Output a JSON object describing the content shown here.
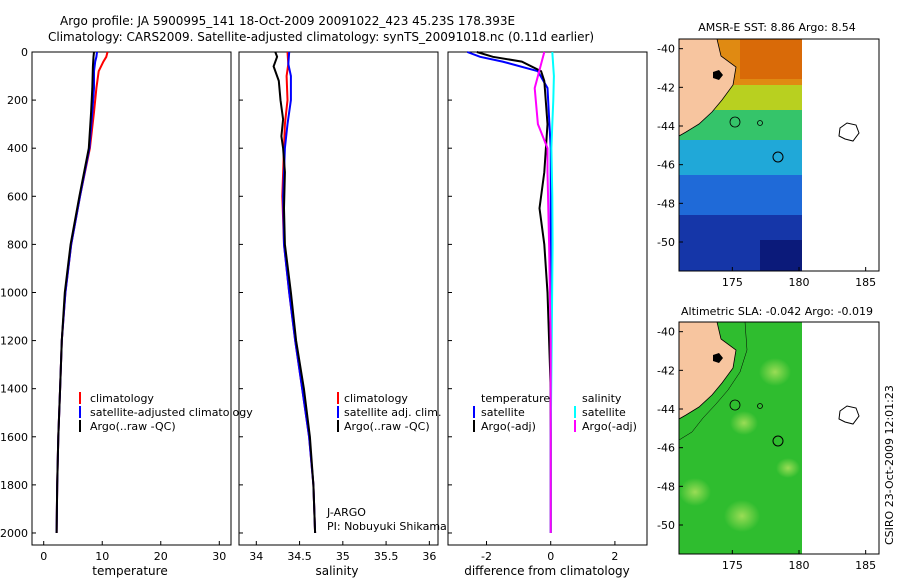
{
  "header": {
    "line1": "Argo profile: JA 5900995_141 18-Oct-2009 20091022_423 45.23S 178.393E",
    "line2": "Climatology: CARS2009. Satellite-adjusted climatology: synTS_20091018.nc (0.11d earlier)"
  },
  "colors": {
    "climatology": "#ff0000",
    "satellite": "#0000ff",
    "argo": "#000000",
    "sal_satellite": "#00ffff",
    "sal_argo": "#ff00ff",
    "land": "#f7c59f",
    "sla": "#22bb22"
  },
  "credit": "CSIRO 23-Oct-2009 12:01:23",
  "chart_data": [
    {
      "id": "temperature",
      "type": "line",
      "xlabel": "temperature",
      "ylabel": "",
      "xlim": [
        -2,
        32
      ],
      "ylim": [
        2050,
        0
      ],
      "xticks": [
        0,
        10,
        20,
        30
      ],
      "yticks": [
        0,
        200,
        400,
        600,
        800,
        1000,
        1200,
        1400,
        1600,
        1800,
        2000
      ],
      "series": [
        {
          "name": "climatology",
          "color": "#ff0000",
          "x": [
            10.9,
            10.7,
            10.2,
            9.4,
            9.0,
            8.6,
            7.9,
            6.2,
            4.7,
            3.7,
            3.1,
            2.8,
            2.5,
            2.3,
            2.2
          ],
          "y": [
            0,
            20,
            40,
            80,
            150,
            250,
            400,
            600,
            800,
            1000,
            1200,
            1400,
            1600,
            1800,
            2000
          ]
        },
        {
          "name": "satellite-adjusted climatology",
          "color": "#0000ff",
          "x": [
            9.1,
            9.0,
            8.8,
            8.6,
            8.6,
            8.3,
            7.8,
            6.2,
            4.7,
            3.7,
            3.1,
            2.8,
            2.5,
            2.3,
            2.2
          ],
          "y": [
            0,
            20,
            40,
            80,
            150,
            250,
            400,
            600,
            800,
            1000,
            1200,
            1400,
            1600,
            1800,
            2000
          ]
        },
        {
          "name": "Argo(..raw -QC)",
          "color": "#000000",
          "x": [
            8.6,
            8.5,
            8.4,
            8.3,
            8.1,
            7.7,
            6.1,
            4.6,
            3.6,
            3.1,
            2.8,
            2.5,
            2.3,
            2.2
          ],
          "y": [
            0,
            20,
            60,
            150,
            250,
            400,
            600,
            800,
            1000,
            1200,
            1400,
            1600,
            1800,
            2000
          ]
        }
      ],
      "legend": {
        "placement": "lower-right",
        "entries": [
          "climatology",
          "satellite-adjusted climatology",
          "Argo(..raw -QC)"
        ]
      }
    },
    {
      "id": "salinity",
      "type": "line",
      "xlabel": "salinity",
      "ylabel": "",
      "xlim": [
        33.8,
        36.1
      ],
      "ylim": [
        2050,
        0
      ],
      "xticks": [
        34,
        34.5,
        35,
        35.5,
        36
      ],
      "tick_labels": [
        "34",
        "34.5",
        "35",
        "35.5",
        "36"
      ],
      "series": [
        {
          "name": "climatology",
          "color": "#ff0000",
          "x": [
            34.36,
            34.37,
            34.35,
            34.36,
            34.33,
            34.32,
            34.3,
            34.32,
            34.38,
            34.45,
            34.53,
            34.61,
            34.66,
            34.68
          ],
          "y": [
            0,
            50,
            100,
            200,
            300,
            400,
            600,
            800,
            1000,
            1200,
            1400,
            1600,
            1800,
            2000
          ]
        },
        {
          "name": "satellite adj. clim.",
          "color": "#0000ff",
          "x": [
            34.38,
            34.37,
            34.4,
            34.4,
            34.36,
            34.33,
            34.31,
            34.32,
            34.38,
            34.45,
            34.53,
            34.61,
            34.66,
            34.68
          ],
          "y": [
            0,
            50,
            100,
            200,
            300,
            400,
            600,
            800,
            1000,
            1200,
            1400,
            1600,
            1800,
            2000
          ]
        },
        {
          "name": "Argo(..raw -QC)",
          "color": "#000000",
          "x": [
            34.22,
            34.24,
            34.2,
            34.26,
            34.28,
            34.31,
            34.29,
            34.31,
            34.33,
            34.32,
            34.33,
            34.4,
            34.46,
            34.55,
            34.62,
            34.66,
            34.68
          ],
          "y": [
            0,
            20,
            60,
            120,
            200,
            280,
            350,
            400,
            500,
            650,
            800,
            1000,
            1200,
            1400,
            1600,
            1800,
            2000
          ]
        }
      ],
      "legend": {
        "placement": "lower-right",
        "entries": [
          "climatology",
          "satellite adj. clim.",
          "Argo(..raw -QC)"
        ]
      },
      "annotations": [
        "J-ARGO",
        "PI: Nobuyuki Shikama"
      ]
    },
    {
      "id": "difference",
      "type": "line",
      "xlabel": "difference from climatology",
      "ylabel": "",
      "xlim": [
        -3.2,
        3.0
      ],
      "ylim": [
        2050,
        0
      ],
      "xticks": [
        -2,
        0,
        2
      ],
      "series": [
        {
          "name": "temperature satellite",
          "color": "#0000ff",
          "x": [
            -2.6,
            -2.2,
            -1.5,
            -0.4,
            -0.1,
            0.0,
            0.0,
            0.0,
            0.0,
            0.0
          ],
          "y": [
            0,
            20,
            40,
            80,
            150,
            400,
            800,
            1200,
            1600,
            2000
          ]
        },
        {
          "name": "temperature Argo(-adj)",
          "color": "#000000",
          "x": [
            -2.3,
            -1.8,
            -0.9,
            -0.3,
            -0.2,
            -0.1,
            -0.2,
            -0.35,
            -0.2,
            -0.1,
            0.0,
            0.0
          ],
          "y": [
            0,
            20,
            40,
            80,
            120,
            300,
            500,
            650,
            800,
            1000,
            1400,
            2000
          ]
        },
        {
          "name": "salinity satellite",
          "color": "#00ffff",
          "x": [
            0.05,
            0.1,
            0.08,
            0.05,
            0.02,
            0.05,
            0.06,
            0.03,
            0.0,
            0.0
          ],
          "y": [
            0,
            100,
            200,
            300,
            400,
            600,
            800,
            1200,
            1600,
            2000
          ]
        },
        {
          "name": "salinity Argo(-adj)",
          "color": "#ff00ff",
          "x": [
            -0.2,
            -0.3,
            -0.5,
            -0.4,
            -0.1,
            -0.1,
            -0.05,
            0.0,
            0.0
          ],
          "y": [
            0,
            50,
            150,
            300,
            400,
            500,
            800,
            1200,
            2000
          ]
        }
      ],
      "legend": {
        "placement": "lower-right",
        "entries": [
          "temperature",
          "satellite",
          "Argo(-adj)",
          "salinity",
          "satellite",
          "Argo(-adj)"
        ]
      }
    }
  ],
  "maps": [
    {
      "id": "sst-map",
      "title": "AMSR-E SST: 8.86 Argo: 8.54",
      "xlim": [
        171,
        186
      ],
      "ylim": [
        -51.5,
        -39.5
      ],
      "xticks": [
        175,
        180,
        185
      ],
      "yticks": [
        -40,
        -42,
        -44,
        -46,
        -48,
        -50
      ],
      "profile_lon": 178.393,
      "profile_lat": -45.23
    },
    {
      "id": "sla-map",
      "title": "Altimetric SLA: -0.042 Argo: -0.019",
      "xlim": [
        171,
        186
      ],
      "ylim": [
        -51.5,
        -39.5
      ],
      "xticks": [
        175,
        180,
        185
      ],
      "yticks": [
        -40,
        -42,
        -44,
        -46,
        -48,
        -50
      ],
      "profile_lon": 178.393,
      "profile_lat": -45.23
    }
  ]
}
